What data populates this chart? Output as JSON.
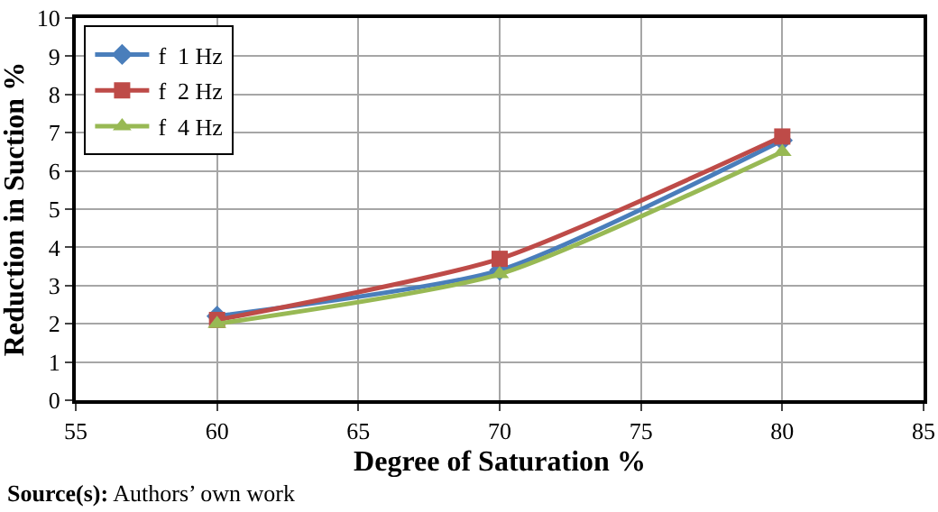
{
  "chart_data": {
    "type": "line",
    "xlabel": "Degree of Saturation %",
    "ylabel": "Reduction in Suction %",
    "x": [
      60,
      70,
      80
    ],
    "series": [
      {
        "name": "f  1 Hz",
        "color": "#4a7ebb",
        "values": [
          2.2,
          3.4,
          6.8
        ],
        "marker": "diamond"
      },
      {
        "name": "f  2 Hz",
        "color": "#be4b48",
        "values": [
          2.1,
          3.7,
          6.9
        ],
        "marker": "square"
      },
      {
        "name": "f  4 Hz",
        "color": "#98b954",
        "values": [
          2.0,
          3.3,
          6.5
        ],
        "marker": "triangle"
      }
    ],
    "xlim": [
      55,
      85
    ],
    "xticks": [
      55,
      60,
      65,
      70,
      75,
      80,
      85
    ],
    "ylim": [
      0,
      10
    ],
    "yticks": [
      0,
      1,
      2,
      3,
      4,
      5,
      6,
      7,
      8,
      9,
      10
    ],
    "grid": true,
    "legend": "top left",
    "line_style": "solid",
    "annotations": [
      "Source(s): Authors’ own work"
    ]
  }
}
